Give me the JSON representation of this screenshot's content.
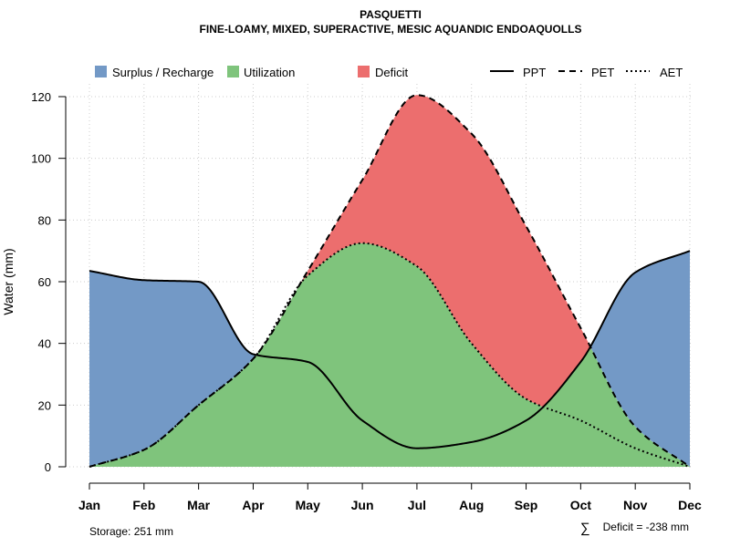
{
  "chart_data": {
    "type": "area",
    "title": "PASQUETTI",
    "subtitle": "FINE-LOAMY, MIXED, SUPERACTIVE, MESIC AQUANDIC ENDOAQUOLLS",
    "xlabel": "",
    "ylabel": "Water (mm)",
    "ylim": [
      0,
      120
    ],
    "yticks": [
      0,
      20,
      40,
      60,
      80,
      100,
      120
    ],
    "categories": [
      "Jan",
      "Feb",
      "Mar",
      "Apr",
      "May",
      "Jun",
      "Jul",
      "Aug",
      "Sep",
      "Oct",
      "Nov",
      "Dec"
    ],
    "grid": true,
    "legend": [
      {
        "label": "Surplus / Recharge",
        "kind": "fill",
        "color": "#7399c6"
      },
      {
        "label": "Utilization",
        "kind": "fill",
        "color": "#7fc47c"
      },
      {
        "label": "Deficit",
        "kind": "fill",
        "color": "#ec6e6e"
      },
      {
        "label": "PPT",
        "kind": "line",
        "dash": "solid"
      },
      {
        "label": "PET",
        "kind": "line",
        "dash": "dashed"
      },
      {
        "label": "AET",
        "kind": "line",
        "dash": "dotted"
      }
    ],
    "series": [
      {
        "name": "PPT",
        "values": [
          63.5,
          60.5,
          60,
          36.5,
          34,
          15,
          6,
          8,
          15,
          34,
          63,
          70
        ]
      },
      {
        "name": "PET",
        "values": [
          0,
          5.5,
          20,
          35,
          63.5,
          93,
          120.5,
          108,
          78,
          45,
          13,
          0
        ]
      },
      {
        "name": "AET",
        "values": [
          0,
          5.5,
          20,
          35,
          62,
          72.5,
          65,
          40,
          22,
          15,
          6,
          0
        ]
      }
    ],
    "colors": {
      "surplus": "#7399c6",
      "utilization": "#7fc47c",
      "deficit": "#ec6e6e",
      "grid": "#cccccc",
      "line": "#000000"
    },
    "annotations": {
      "storage": "Storage: 251 mm",
      "deficit_symbol": "∑",
      "deficit": "Deficit = -238 mm"
    }
  }
}
